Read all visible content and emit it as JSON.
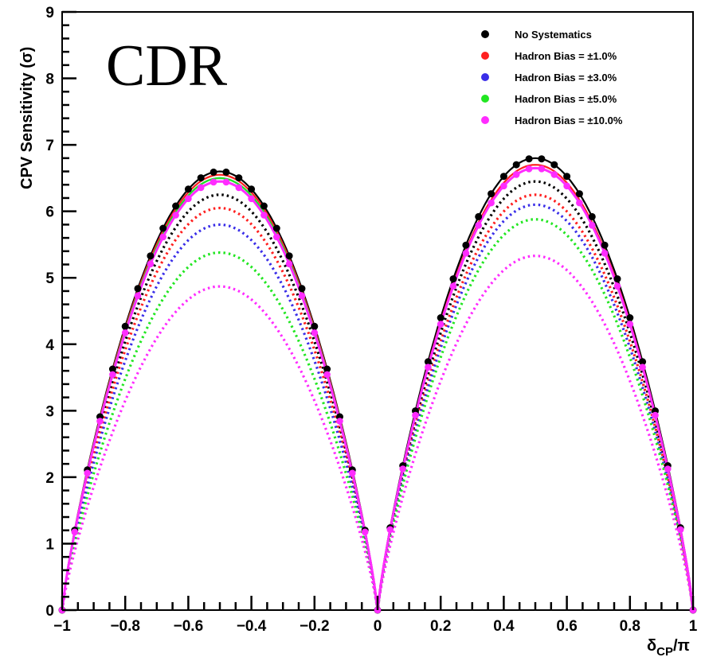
{
  "chart_data": {
    "type": "line",
    "annotation": "CDR",
    "xlabel": "δ_CP/π",
    "ylabel": "CPV Sensitivity (σ)",
    "xlim": [
      -1,
      1
    ],
    "ylim": [
      0,
      9
    ],
    "x_ticks": [
      -1,
      -0.8,
      -0.6,
      -0.4,
      -0.2,
      0,
      0.2,
      0.4,
      0.6,
      0.8,
      1
    ],
    "y_ticks": [
      0,
      1,
      2,
      3,
      4,
      5,
      6,
      7,
      8,
      9
    ],
    "legend_position": "top-right",
    "legend": [
      {
        "label": "No Systematics",
        "color": "#000000"
      },
      {
        "label": "Hadron Bias = ±1.0%",
        "color": "#ff2020"
      },
      {
        "label": "Hadron Bias = ±3.0%",
        "color": "#3a2ee8"
      },
      {
        "label": "Hadron Bias = ±5.0%",
        "color": "#22e622"
      },
      {
        "label": "Hadron Bias = ±10.0%",
        "color": "#ff2cff"
      }
    ],
    "series": [
      {
        "name": "No Systematics",
        "color": "#000000",
        "peak_neg": 6.6,
        "peak_pos": 6.8
      },
      {
        "name": "Hadron Bias = ±1.0%",
        "color": "#ff2020",
        "peak_neg": 6.55,
        "peak_pos": 6.7
      },
      {
        "name": "Hadron Bias = ±3.0%",
        "color": "#3a2ee8",
        "peak_neg": 6.5,
        "peak_pos": 6.65
      },
      {
        "name": "Hadron Bias = ±5.0%",
        "color": "#22e622",
        "peak_neg": 6.5,
        "peak_pos": 6.65
      },
      {
        "name": "Hadron Bias = ±10.0%",
        "color": "#ff2cff",
        "peak_neg": 6.45,
        "peak_pos": 6.65
      }
    ],
    "dotted_series": [
      {
        "color": "#000000",
        "peak_neg": 6.25,
        "peak_pos": 6.45
      },
      {
        "color": "#ff2020",
        "peak_neg": 6.05,
        "peak_pos": 6.25
      },
      {
        "color": "#3a2ee8",
        "peak_neg": 5.8,
        "peak_pos": 6.1
      },
      {
        "color": "#22e622",
        "peak_neg": 5.38,
        "peak_pos": 5.88
      },
      {
        "color": "#ff2cff",
        "peak_neg": 4.87,
        "peak_pos": 5.33
      }
    ],
    "n_bins": 50
  }
}
